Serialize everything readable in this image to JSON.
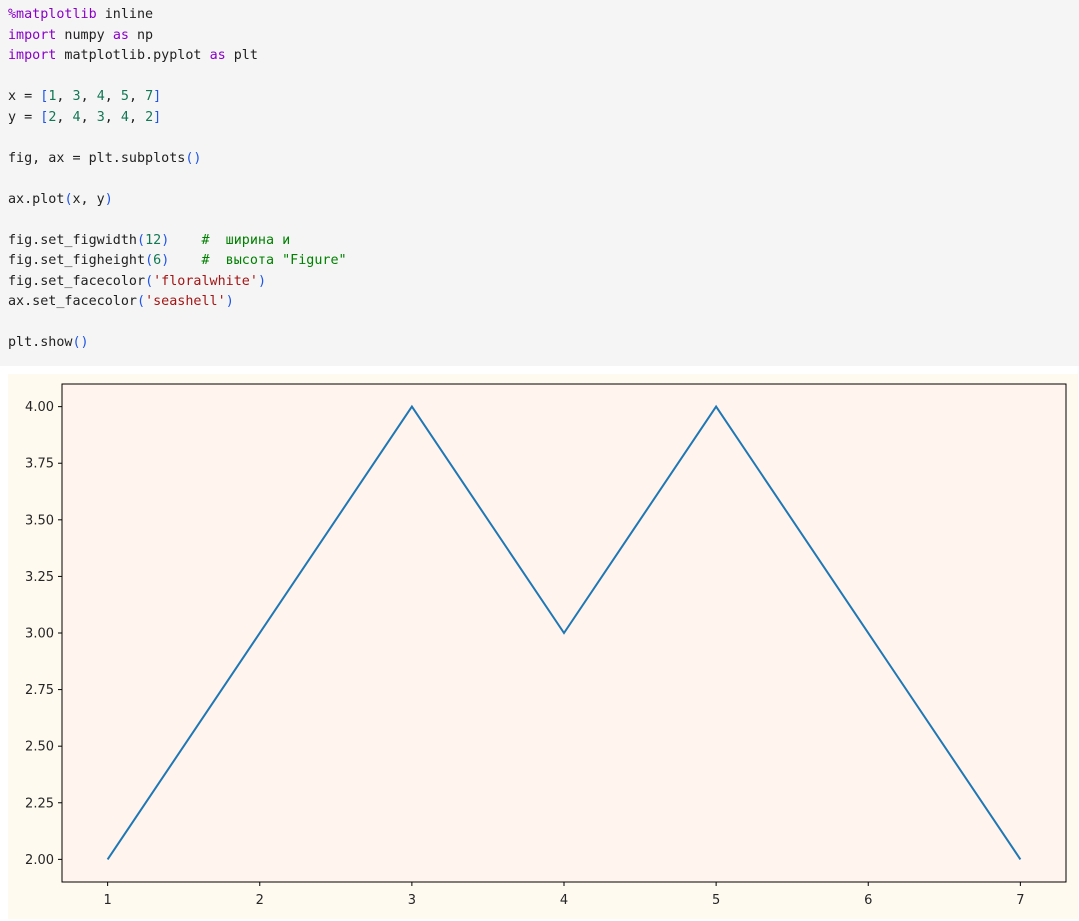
{
  "code_cell": {
    "lines": [
      [
        [
          "mg",
          "%matplotlib"
        ],
        [
          "t",
          " inline"
        ]
      ],
      [
        [
          "kw",
          "import"
        ],
        [
          "t",
          " numpy "
        ],
        [
          "kw",
          "as"
        ],
        [
          "t",
          " np"
        ]
      ],
      [
        [
          "kw",
          "import"
        ],
        [
          "t",
          " matplotlib.pyplot "
        ],
        [
          "kw",
          "as"
        ],
        [
          "t",
          " plt"
        ]
      ],
      [],
      [
        [
          "t",
          "x = "
        ],
        [
          "br",
          "["
        ],
        [
          "num",
          "1"
        ],
        [
          "t",
          ", "
        ],
        [
          "num",
          "3"
        ],
        [
          "t",
          ", "
        ],
        [
          "num",
          "4"
        ],
        [
          "t",
          ", "
        ],
        [
          "num",
          "5"
        ],
        [
          "t",
          ", "
        ],
        [
          "num",
          "7"
        ],
        [
          "br",
          "]"
        ]
      ],
      [
        [
          "t",
          "y = "
        ],
        [
          "br",
          "["
        ],
        [
          "num",
          "2"
        ],
        [
          "t",
          ", "
        ],
        [
          "num",
          "4"
        ],
        [
          "t",
          ", "
        ],
        [
          "num",
          "3"
        ],
        [
          "t",
          ", "
        ],
        [
          "num",
          "4"
        ],
        [
          "t",
          ", "
        ],
        [
          "num",
          "2"
        ],
        [
          "br",
          "]"
        ]
      ],
      [],
      [
        [
          "t",
          "fig, ax = plt.subplots"
        ],
        [
          "br",
          "()"
        ]
      ],
      [],
      [
        [
          "t",
          "ax.plot"
        ],
        [
          "br",
          "("
        ],
        [
          "t",
          "x, y"
        ],
        [
          "br",
          ")"
        ]
      ],
      [],
      [
        [
          "t",
          "fig.set_figwidth"
        ],
        [
          "br",
          "("
        ],
        [
          "num",
          "12"
        ],
        [
          "br",
          ")"
        ],
        [
          "t",
          "    "
        ],
        [
          "cm",
          "#  ширина и"
        ]
      ],
      [
        [
          "t",
          "fig.set_figheight"
        ],
        [
          "br",
          "("
        ],
        [
          "num",
          "6"
        ],
        [
          "br",
          ")"
        ],
        [
          "t",
          "    "
        ],
        [
          "cm",
          "#  высота \"Figure\""
        ]
      ],
      [
        [
          "t",
          "fig.set_facecolor"
        ],
        [
          "br",
          "("
        ],
        [
          "str",
          "'floralwhite'"
        ],
        [
          "br",
          ")"
        ]
      ],
      [
        [
          "t",
          "ax.set_facecolor"
        ],
        [
          "br",
          "("
        ],
        [
          "str",
          "'seashell'"
        ],
        [
          "br",
          ")"
        ]
      ],
      [],
      [
        [
          "t",
          "plt.show"
        ],
        [
          "br",
          "()"
        ]
      ]
    ]
  },
  "output": {
    "figure_facecolor": "#fffaf0",
    "axes_facecolor": "#fff5ee",
    "line_color": "#1f77b4"
  },
  "chart_data": {
    "type": "line",
    "x": [
      1,
      3,
      4,
      5,
      7
    ],
    "y": [
      2,
      4,
      3,
      4,
      2
    ],
    "xlim": [
      0.7,
      7.3
    ],
    "ylim": [
      1.9,
      4.1
    ],
    "xticks": [
      "1",
      "2",
      "3",
      "4",
      "5",
      "6",
      "7"
    ],
    "yticks": [
      "2.00",
      "2.25",
      "2.50",
      "2.75",
      "3.00",
      "3.25",
      "3.50",
      "3.75",
      "4.00"
    ],
    "title": "",
    "xlabel": "",
    "ylabel": "",
    "grid": false
  }
}
